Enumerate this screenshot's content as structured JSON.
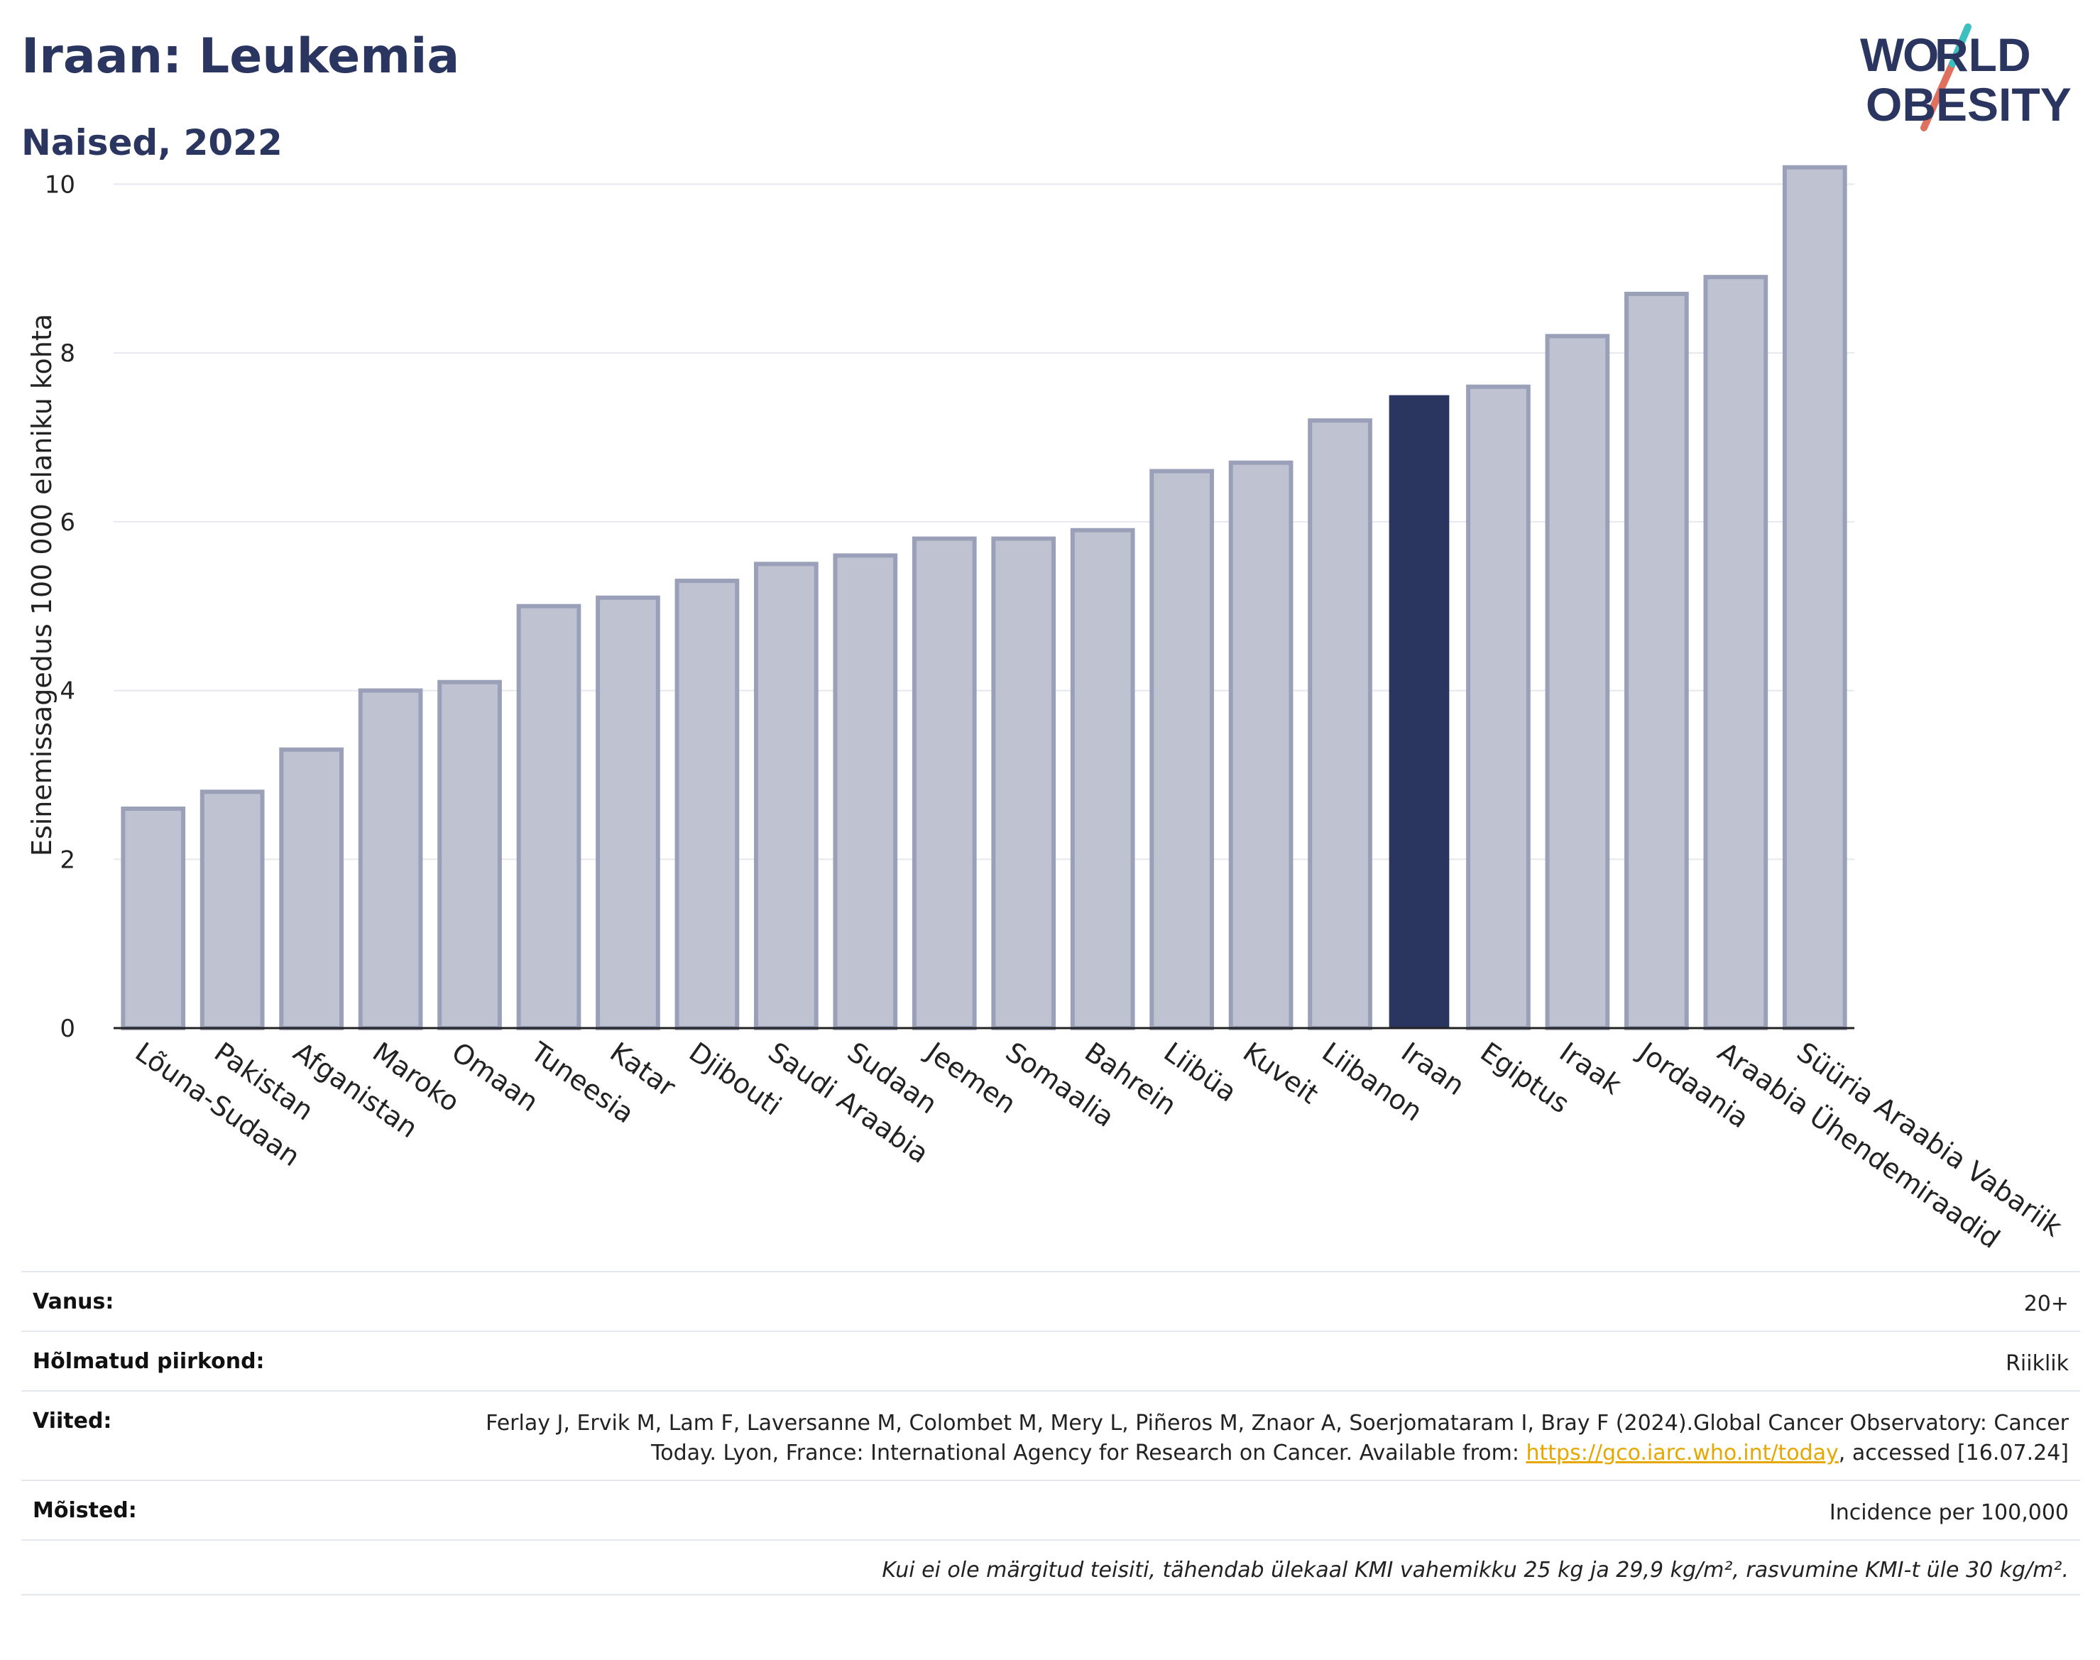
{
  "header": {
    "title": "Iraan: Leukemia",
    "subtitle": "Naised, 2022"
  },
  "logo": {
    "line1": "WORLD",
    "line2": "OBESITY"
  },
  "colors": {
    "bar": "#bfc3d1",
    "bar_stroke": "#9aa0b8",
    "highlight": "#2a3560",
    "grid": "#e6e8ee"
  },
  "chart_data": {
    "type": "bar",
    "ylabel": "Esinemissagedus 100 000 elaniku kohta",
    "ylim": [
      0,
      10.5
    ],
    "yticks": [
      0,
      2,
      4,
      6,
      8,
      10
    ],
    "grid": true,
    "highlight": "Iraan",
    "categories": [
      "Lõuna-Sudaan",
      "Pakistan",
      "Afganistan",
      "Maroko",
      "Omaan",
      "Tuneesia",
      "Katar",
      "Djibouti",
      "Saudi Araabia",
      "Sudaan",
      "Jeemen",
      "Somaalia",
      "Bahrein",
      "Liibüa",
      "Kuveit",
      "Liibanon",
      "Iraan",
      "Egiptus",
      "Iraak",
      "Jordaania",
      "Araabia Ühendemiraadid",
      "Süüria Araabia Vabariik"
    ],
    "values": [
      2.6,
      2.8,
      3.3,
      4.0,
      4.1,
      5.0,
      5.1,
      5.3,
      5.5,
      5.6,
      5.8,
      5.8,
      5.9,
      6.6,
      6.7,
      7.2,
      7.5,
      7.6,
      8.2,
      8.7,
      8.9,
      10.2
    ]
  },
  "info": {
    "age_label": "Vanus:",
    "age_value": "20+",
    "region_label": "Hõlmatud piirkond:",
    "region_value": "Riiklik",
    "refs_label": "Viited:",
    "refs_text": "Ferlay J, Ervik M, Lam F, Laversanne M, Colombet M, Mery L, Piñeros M, Znaor A, Soerjomataram I, Bray F (2024).Global Cancer Observatory: Cancer Today. Lyon, France: International Agency for Research on Cancer. Available from:",
    "refs_link": "https://gco.iarc.who.int/today",
    "refs_tail": ", accessed [16.07.24]",
    "defs_label": "Mõisted:",
    "defs_value": "Incidence per 100,000",
    "note": "Kui ei ole märgitud teisiti, tähendab ülekaal KMI vahemikku 25 kg ja 29,9 kg/m², rasvumine KMI-t üle 30 kg/m²."
  }
}
